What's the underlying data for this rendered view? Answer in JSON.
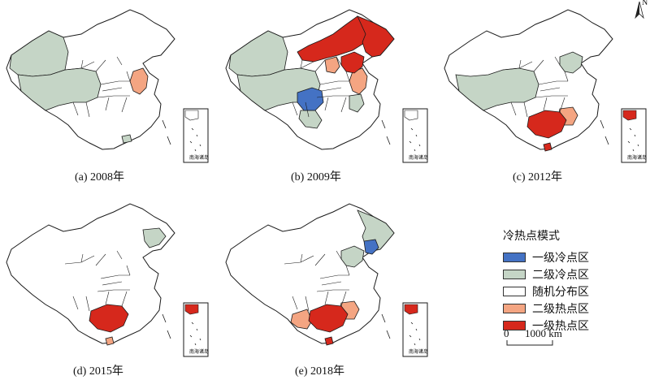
{
  "colors": {
    "cold1": "#4472c4",
    "cold2": "#c5d5c6",
    "random": "#ffffff",
    "hot2": "#f4a582",
    "hot1": "#d6281c",
    "border": "#1a1a1a"
  },
  "panels": [
    {
      "caption": "(a) 2008年",
      "regions": {
        "cold2": [
          "xinjiang",
          "qinghai-tibet",
          "south-islands"
        ],
        "hot2": [
          "east-coast"
        ],
        "hot1": [],
        "cold1": []
      },
      "inset_label": "南海诸岛"
    },
    {
      "caption": "(b) 2009年",
      "regions": {
        "cold2": [
          "xinjiang",
          "qinghai-tibet",
          "southwest",
          "east-coast-south"
        ],
        "hot2": [
          "east-coast",
          "northcentral"
        ],
        "hot1": [
          "inner-mongolia",
          "northeast",
          "north-china"
        ],
        "cold1": [
          "sichuan"
        ]
      },
      "inset_label": "南海诸岛"
    },
    {
      "caption": "(c) 2012年",
      "regions": {
        "cold2": [
          "qinghai-tibet",
          "north-china"
        ],
        "hot2": [
          "southeast"
        ],
        "hot1": [
          "south-china",
          "hainan",
          "inset-top"
        ],
        "cold1": []
      },
      "inset_label": "南海诸岛"
    },
    {
      "caption": "(d) 2015年",
      "regions": {
        "cold2": [
          "northeast-strip"
        ],
        "hot2": [
          "hainan"
        ],
        "hot1": [
          "south-china",
          "inset-top"
        ],
        "cold1": []
      },
      "inset_label": "南海诸岛"
    },
    {
      "caption": "(e) 2018年",
      "regions": {
        "cold2": [
          "northeast",
          "north-china"
        ],
        "hot2": [
          "southwest-south",
          "southeast"
        ],
        "hot1": [
          "south-china",
          "hainan",
          "inset-top"
        ],
        "cold1": [
          "liaoning"
        ]
      },
      "inset_label": "南海诸岛"
    }
  ],
  "legend": {
    "title": "冷热点模式",
    "items": [
      {
        "label": "一级冷点区",
        "color_key": "cold1"
      },
      {
        "label": "二级冷点区",
        "color_key": "cold2"
      },
      {
        "label": "随机分布区",
        "color_key": "random"
      },
      {
        "label": "二级热点区",
        "color_key": "hot2"
      },
      {
        "label": "一级热点区",
        "color_key": "hot1"
      }
    ]
  },
  "scale": {
    "zero": "0",
    "max": "1000 km"
  },
  "north_label": "N"
}
